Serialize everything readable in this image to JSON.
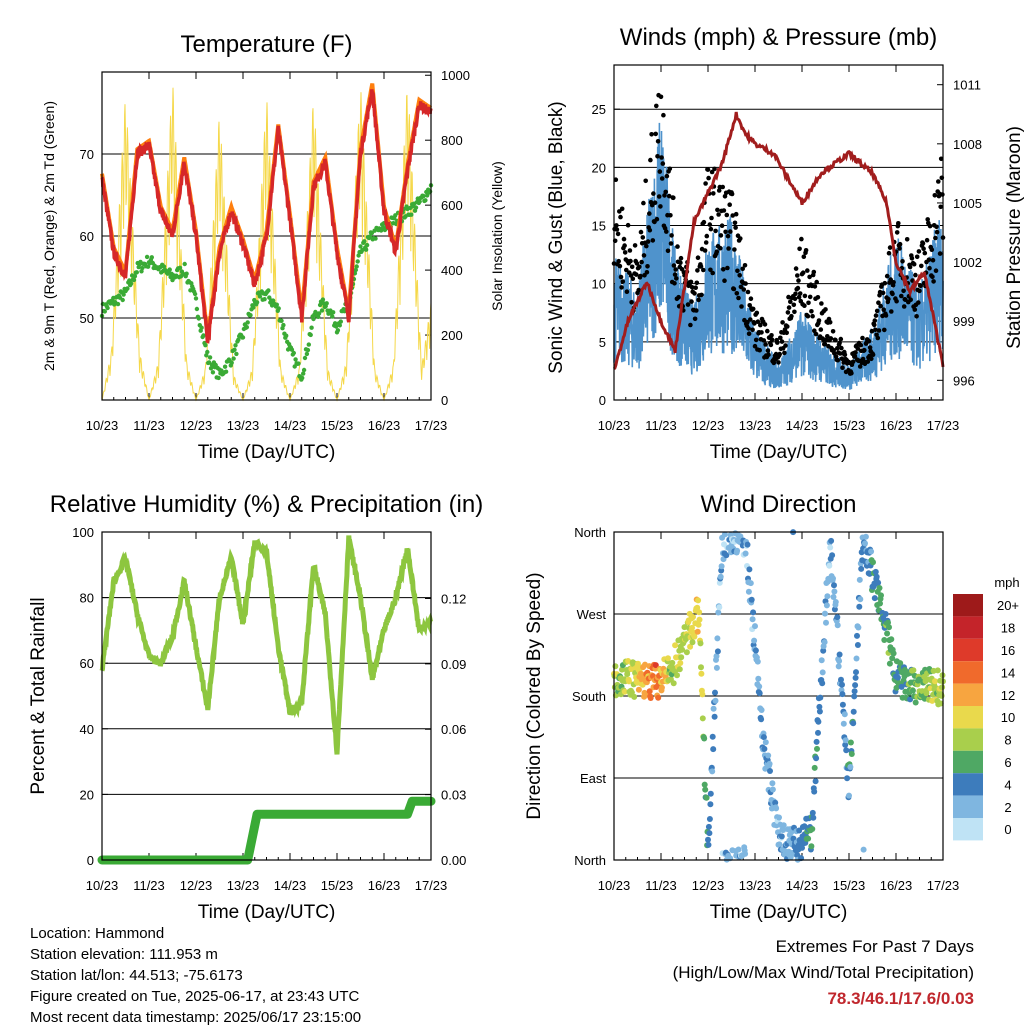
{
  "colors": {
    "temp2m": "#d62728",
    "temp9m": "#ff7f0e",
    "dewpoint": "#3aaa35",
    "solar": "#f5d84a",
    "wind": "#4f93cc",
    "gust": "#000000",
    "pressure": "#a11d1d",
    "rh": "#8dc63f",
    "rain": "#3aaa35",
    "extremes": "#c0272d"
  },
  "info": {
    "location": "Location: Hammond",
    "elevation": "Station elevation: 111.953 m",
    "latlon": "Station lat/lon: 44.513; -75.6173",
    "created": "Figure created on Tue, 2025-06-17, at 23:43 UTC",
    "recent": "Most recent data timestamp: 2025/06/17 23:15:00"
  },
  "extremes": {
    "title": "Extremes For Past 7 Days",
    "subtitle": "(High/Low/Max Wind/Total Precipitation)",
    "values": "78.3/46.1/17.6/0.03"
  },
  "chart_data": [
    {
      "type": "line",
      "title": "Temperature (F)",
      "xlabel": "Time (Day/UTC)",
      "ylabel": "2m & 9m T (Red, Orange) & 2m Td (Green)",
      "ylabel_right": "Solar Insolation (Yellow)",
      "x_ticks": [
        "10/23",
        "11/23",
        "12/23",
        "13/23",
        "14/23",
        "15/23",
        "16/23",
        "17/23"
      ],
      "y_ticks": [
        "50",
        "60",
        "70"
      ],
      "y_ticks_right": [
        "0",
        "200",
        "400",
        "600",
        "800",
        "1000"
      ],
      "ylim": [
        40,
        80
      ],
      "ylim_right": [
        0,
        1000
      ],
      "series": [
        {
          "name": "2m T",
          "x": [
            0,
            0.25,
            0.5,
            0.75,
            1.0,
            1.25,
            1.5,
            1.75,
            2.0,
            2.25,
            2.5,
            2.75,
            3.0,
            3.25,
            3.5,
            3.75,
            4.0,
            4.25,
            4.5,
            4.75,
            5.0,
            5.25,
            5.5,
            5.75,
            6.0,
            6.25,
            6.5,
            6.75,
            7.0
          ],
          "values": [
            67,
            58,
            55,
            70,
            71,
            63,
            60,
            69,
            60,
            47,
            58,
            63,
            59,
            54,
            60,
            73,
            62,
            50,
            66,
            69,
            58,
            50,
            70,
            78,
            63,
            58,
            68,
            76,
            75
          ]
        },
        {
          "name": "2m Td",
          "x": [
            0,
            0.25,
            0.5,
            0.75,
            1.0,
            1.25,
            1.5,
            1.75,
            2.0,
            2.25,
            2.5,
            2.75,
            3.0,
            3.25,
            3.5,
            3.75,
            4.0,
            4.25,
            4.5,
            4.75,
            5.0,
            5.25,
            5.5,
            5.75,
            6.0,
            6.25,
            6.5,
            6.75,
            7.0
          ],
          "values": [
            51,
            52,
            53,
            56,
            57,
            56,
            55,
            56,
            52,
            45,
            43,
            45,
            48,
            52,
            53,
            51,
            46,
            43,
            50,
            52,
            49,
            52,
            58,
            60,
            61,
            62,
            63,
            64,
            66
          ]
        },
        {
          "name": "Solar",
          "x": [
            0,
            0.2,
            0.5,
            0.8,
            1.0,
            1.2,
            1.5,
            1.8,
            2.0,
            2.2,
            2.5,
            2.8,
            3.0,
            3.2,
            3.5,
            3.8,
            4.0,
            4.2,
            4.5,
            4.8,
            5.0,
            5.2,
            5.5,
            5.8,
            6.0,
            6.2,
            6.5,
            6.8,
            7.0
          ],
          "values": [
            0,
            150,
            950,
            150,
            0,
            120,
            1000,
            120,
            0,
            100,
            900,
            80,
            0,
            100,
            950,
            100,
            0,
            100,
            950,
            100,
            0,
            120,
            980,
            100,
            0,
            110,
            1000,
            100,
            300
          ]
        }
      ]
    },
    {
      "type": "scatter",
      "title": "Winds (mph) & Pressure (mb)",
      "xlabel": "Time (Day/UTC)",
      "ylabel": "Sonic Wind & Gust (Blue, Black)",
      "ylabel_right": "Station Pressure (Maroon)",
      "x_ticks": [
        "10/23",
        "11/23",
        "12/23",
        "13/23",
        "14/23",
        "15/23",
        "16/23",
        "17/23"
      ],
      "y_ticks": [
        "0",
        "5",
        "10",
        "15",
        "20",
        "25"
      ],
      "y_ticks_right": [
        "996",
        "999",
        "1002",
        "1005",
        "1008",
        "1011"
      ],
      "ylim": [
        0,
        28.8
      ],
      "ylim_right": [
        995,
        1012
      ],
      "series": [
        {
          "name": "Wind",
          "x": [
            0,
            0.5,
            1.0,
            1.3,
            1.7,
            2.0,
            2.5,
            3.0,
            3.5,
            4.0,
            4.5,
            5.0,
            5.5,
            6.0,
            6.5,
            7.0
          ],
          "values": [
            8,
            6,
            16,
            8,
            5,
            9,
            10,
            4,
            2,
            5,
            3,
            2,
            4,
            9,
            6,
            11
          ]
        },
        {
          "name": "Gust",
          "x": [
            0,
            0.5,
            1.0,
            1.3,
            1.7,
            2.0,
            2.5,
            3.0,
            3.5,
            4.0,
            4.5,
            5.0,
            5.5,
            6.0,
            6.5,
            7.0
          ],
          "values": [
            15,
            10,
            23,
            12,
            8,
            16,
            14,
            6,
            4,
            11,
            6,
            3,
            5,
            12,
            10,
            17
          ]
        },
        {
          "name": "Pressure",
          "x": [
            0,
            0.3,
            0.7,
            1.0,
            1.3,
            1.7,
            2.0,
            2.3,
            2.6,
            2.8,
            3.0,
            3.4,
            4.0,
            4.4,
            5.0,
            5.5,
            5.8,
            6.0,
            6.3,
            6.6,
            7.0
          ],
          "values": [
            996.5,
            999,
            1001,
            999,
            997.5,
            1004,
            1005.5,
            1007,
            1009.5,
            1008.5,
            1008,
            1007.5,
            1005,
            1006.5,
            1007.5,
            1006.5,
            1005,
            1002,
            1000.5,
            1001.5,
            996.8
          ]
        }
      ]
    },
    {
      "type": "line",
      "title": "Relative Humidity (%) & Precipitation (in)",
      "xlabel": "Time (Day/UTC)",
      "ylabel": "Percent & Total Rainfall",
      "x_ticks": [
        "10/23",
        "11/23",
        "12/23",
        "13/23",
        "14/23",
        "15/23",
        "16/23",
        "17/23"
      ],
      "y_ticks": [
        "0",
        "20",
        "40",
        "60",
        "80",
        "100"
      ],
      "y_ticks_right": [
        "0.00",
        "0.03",
        "0.06",
        "0.09",
        "0.12"
      ],
      "ylim": [
        0,
        100
      ],
      "ylim_right": [
        0,
        0.14
      ],
      "series": [
        {
          "name": "RH",
          "x": [
            0,
            0.25,
            0.5,
            0.75,
            1.0,
            1.25,
            1.5,
            1.75,
            2.0,
            2.25,
            2.5,
            2.75,
            3.0,
            3.25,
            3.5,
            3.75,
            4.0,
            4.25,
            4.5,
            4.75,
            5.0,
            5.25,
            5.5,
            5.75,
            6.0,
            6.25,
            6.5,
            6.75,
            7.0
          ],
          "values": [
            58,
            85,
            92,
            75,
            62,
            60,
            68,
            85,
            65,
            46,
            80,
            92,
            72,
            97,
            94,
            65,
            45,
            48,
            90,
            75,
            33,
            98,
            80,
            55,
            70,
            80,
            95,
            70,
            73
          ]
        },
        {
          "name": "Total Rainfall",
          "x": [
            0,
            3.1,
            3.3,
            6.5,
            6.6,
            7.0
          ],
          "values": [
            0,
            0,
            0.021,
            0.021,
            0.027,
            0.027
          ]
        }
      ]
    },
    {
      "type": "scatter",
      "title": "Wind Direction",
      "xlabel": "Time (Day/UTC)",
      "ylabel": "Direction (Colored By Speed)",
      "x_ticks": [
        "10/23",
        "11/23",
        "12/23",
        "13/23",
        "14/23",
        "15/23",
        "16/23",
        "17/23"
      ],
      "y_ticks": [
        "North",
        "East",
        "South",
        "West",
        "North"
      ],
      "ylim": [
        0,
        360
      ],
      "legend_title": "mph",
      "legend_labels": [
        "20+",
        "18",
        "16",
        "14",
        "12",
        "10",
        "8",
        "6",
        "4",
        "2",
        "0"
      ],
      "legend_colors": [
        "#9e1a1a",
        "#c4242a",
        "#de3a2a",
        "#f06a2c",
        "#f7a540",
        "#e9d94c",
        "#a9cf4c",
        "#4fa864",
        "#3d7cbc",
        "#7fb6e0",
        "#bfe3f5"
      ],
      "series": [
        {
          "name": "Direction",
          "x": [
            0.2,
            0.5,
            0.9,
            1.2,
            1.6,
            1.8,
            2.0,
            2.3,
            2.8,
            3.2,
            3.5,
            3.8,
            4.2,
            4.6,
            5.0,
            5.3,
            5.8,
            6.0,
            6.3,
            6.8
          ],
          "values": [
            200,
            198,
            195,
            205,
            250,
            270,
            10,
            350,
            355,
            120,
            30,
            15,
            30,
            350,
            80,
            355,
            250,
            200,
            190,
            190
          ],
          "speeds": [
            8,
            10,
            14,
            8,
            9,
            11,
            4,
            2,
            2,
            3,
            2,
            3,
            5,
            2,
            4,
            3,
            6,
            5,
            6,
            8
          ]
        }
      ]
    }
  ]
}
